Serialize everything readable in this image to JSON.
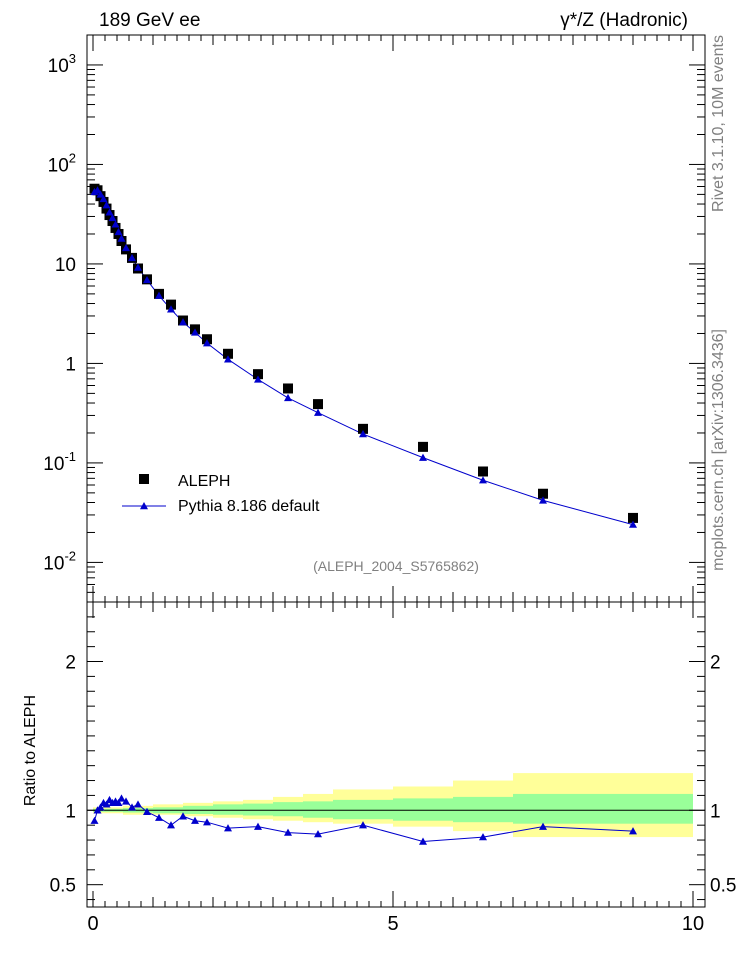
{
  "header": {
    "left": "189 GeV ee",
    "right": "γ*/Z (Hadronic)"
  },
  "side_text": {
    "rivet": "Rivet 3.1.10, 10M events",
    "mcplots": "mcplots.cern.ch [arXiv:1306.3436]"
  },
  "analysis_label": "(ALEPH_2004_S5765862)",
  "ratio_ylabel": "Ratio to ALEPH",
  "colors": {
    "data": "#000000",
    "mc": "#0000cc",
    "band_outer": "#ffff99",
    "band_inner": "#99ff99"
  },
  "chart_data": [
    {
      "type": "scatter",
      "panel": "main",
      "yscale": "log",
      "xlim": [
        -0.1,
        10.2
      ],
      "ylim": [
        0.004,
        2000
      ],
      "x_ticks": [
        0,
        5,
        10
      ],
      "x_tick_labels": [
        "0",
        "5",
        "10"
      ],
      "y_ticks": [
        0.01,
        0.1,
        1,
        10,
        100,
        1000
      ],
      "y_tick_labels": [
        "10^-2",
        "10^-1",
        "1",
        "10",
        "10^2",
        "10^3"
      ],
      "legend_position": "bottom-left",
      "series": [
        {
          "name": "ALEPH",
          "marker": "square",
          "x": [
            0.025,
            0.075,
            0.125,
            0.175,
            0.225,
            0.275,
            0.325,
            0.375,
            0.425,
            0.475,
            0.55,
            0.65,
            0.75,
            0.9,
            1.1,
            1.3,
            1.5,
            1.7,
            1.9,
            2.25,
            2.75,
            3.25,
            3.75,
            4.5,
            5.5,
            6.5,
            7.5,
            9.0
          ],
          "y": [
            57,
            55,
            48,
            42,
            36,
            31,
            27,
            23,
            20,
            17,
            14,
            11.5,
            9,
            7,
            5,
            3.9,
            2.7,
            2.2,
            1.75,
            1.25,
            0.78,
            0.56,
            0.39,
            0.22,
            0.145,
            0.082,
            0.049,
            0.028
          ]
        },
        {
          "name": "Pythia 8.186 default",
          "marker": "triangle",
          "line": true,
          "x": [
            0.025,
            0.075,
            0.125,
            0.175,
            0.225,
            0.275,
            0.325,
            0.375,
            0.425,
            0.475,
            0.55,
            0.65,
            0.75,
            0.9,
            1.1,
            1.3,
            1.5,
            1.7,
            1.9,
            2.25,
            2.75,
            3.25,
            3.75,
            4.5,
            5.5,
            6.5,
            7.5,
            9.0
          ],
          "y": [
            53,
            55,
            50,
            45,
            39,
            33,
            29,
            25,
            21,
            18,
            14.5,
            11.5,
            9.2,
            6.9,
            4.8,
            3.5,
            2.6,
            2.05,
            1.6,
            1.1,
            0.69,
            0.45,
            0.32,
            0.195,
            0.113,
            0.067,
            0.042,
            0.024
          ]
        }
      ]
    },
    {
      "type": "line",
      "panel": "ratio",
      "xlim": [
        -0.1,
        10.2
      ],
      "ylim": [
        0.35,
        2.4
      ],
      "x_ticks": [
        0,
        5,
        10
      ],
      "x_tick_labels": [
        "0",
        "5",
        "10"
      ],
      "y_ticks": [
        0.5,
        1,
        2
      ],
      "y_tick_labels": [
        "0.5",
        "1",
        "2"
      ],
      "ylabel": "Ratio to ALEPH",
      "bands": {
        "edges": [
          0,
          0.5,
          1,
          1.5,
          2,
          2.5,
          3,
          3.5,
          4,
          5,
          6,
          7,
          8,
          10
        ],
        "outer_low": [
          0.98,
          0.97,
          0.97,
          0.96,
          0.95,
          0.94,
          0.93,
          0.92,
          0.91,
          0.89,
          0.86,
          0.82,
          0.82
        ],
        "outer_high": [
          1.02,
          1.03,
          1.04,
          1.05,
          1.06,
          1.07,
          1.09,
          1.11,
          1.14,
          1.16,
          1.2,
          1.25,
          1.25
        ],
        "inner_low": [
          0.99,
          0.985,
          0.98,
          0.975,
          0.97,
          0.965,
          0.96,
          0.95,
          0.94,
          0.93,
          0.92,
          0.91,
          0.91
        ],
        "inner_high": [
          1.01,
          1.015,
          1.02,
          1.03,
          1.04,
          1.045,
          1.055,
          1.06,
          1.07,
          1.08,
          1.09,
          1.11,
          1.11
        ]
      },
      "series": [
        {
          "name": "Pythia 8.186 default",
          "marker": "triangle",
          "x": [
            0.025,
            0.075,
            0.125,
            0.175,
            0.225,
            0.275,
            0.325,
            0.375,
            0.425,
            0.475,
            0.55,
            0.65,
            0.75,
            0.9,
            1.1,
            1.3,
            1.5,
            1.7,
            1.9,
            2.25,
            2.75,
            3.25,
            3.75,
            4.5,
            5.5,
            6.5,
            7.5,
            9.0
          ],
          "y": [
            0.93,
            1.0,
            1.02,
            1.05,
            1.04,
            1.07,
            1.05,
            1.06,
            1.05,
            1.08,
            1.06,
            1.02,
            1.04,
            0.99,
            0.95,
            0.9,
            0.96,
            0.93,
            0.92,
            0.88,
            0.89,
            0.85,
            0.84,
            0.9,
            0.79,
            0.82,
            0.89,
            0.86
          ]
        }
      ]
    }
  ]
}
